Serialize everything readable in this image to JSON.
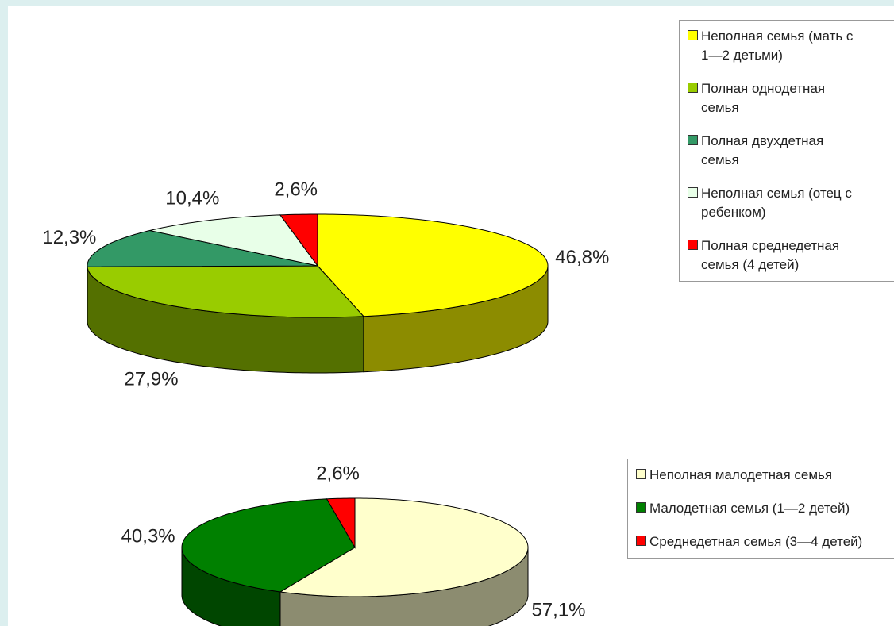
{
  "chart_data": [
    {
      "type": "pie",
      "categories": [
        "Неполная семья (мать с 1—2 детьми)",
        "Полная однодетная семья",
        "Полная двухдетная семья",
        "Неполная семья (отец с ребенком)",
        "Полная среднедетная семья (4 детей)"
      ],
      "values": [
        46.8,
        27.9,
        12.3,
        10.4,
        2.6
      ],
      "value_labels": [
        "46,8%",
        "27,9%",
        "12,3%",
        "10,4%",
        "2,6%"
      ],
      "colors": [
        "#ffff00",
        "#99cc00",
        "#339966",
        "#e8ffe8",
        "#ff0000"
      ]
    },
    {
      "type": "pie",
      "categories": [
        "Неполная малодетная семья",
        "Малодетная семья (1—2 детей)",
        "Среднедетная семья (3—4 детей)"
      ],
      "values": [
        57.1,
        40.3,
        2.6
      ],
      "value_labels": [
        "57,1%",
        "40,3%",
        "2,6%"
      ],
      "colors": [
        "#ffffcc",
        "#008000",
        "#ff0000"
      ]
    }
  ]
}
